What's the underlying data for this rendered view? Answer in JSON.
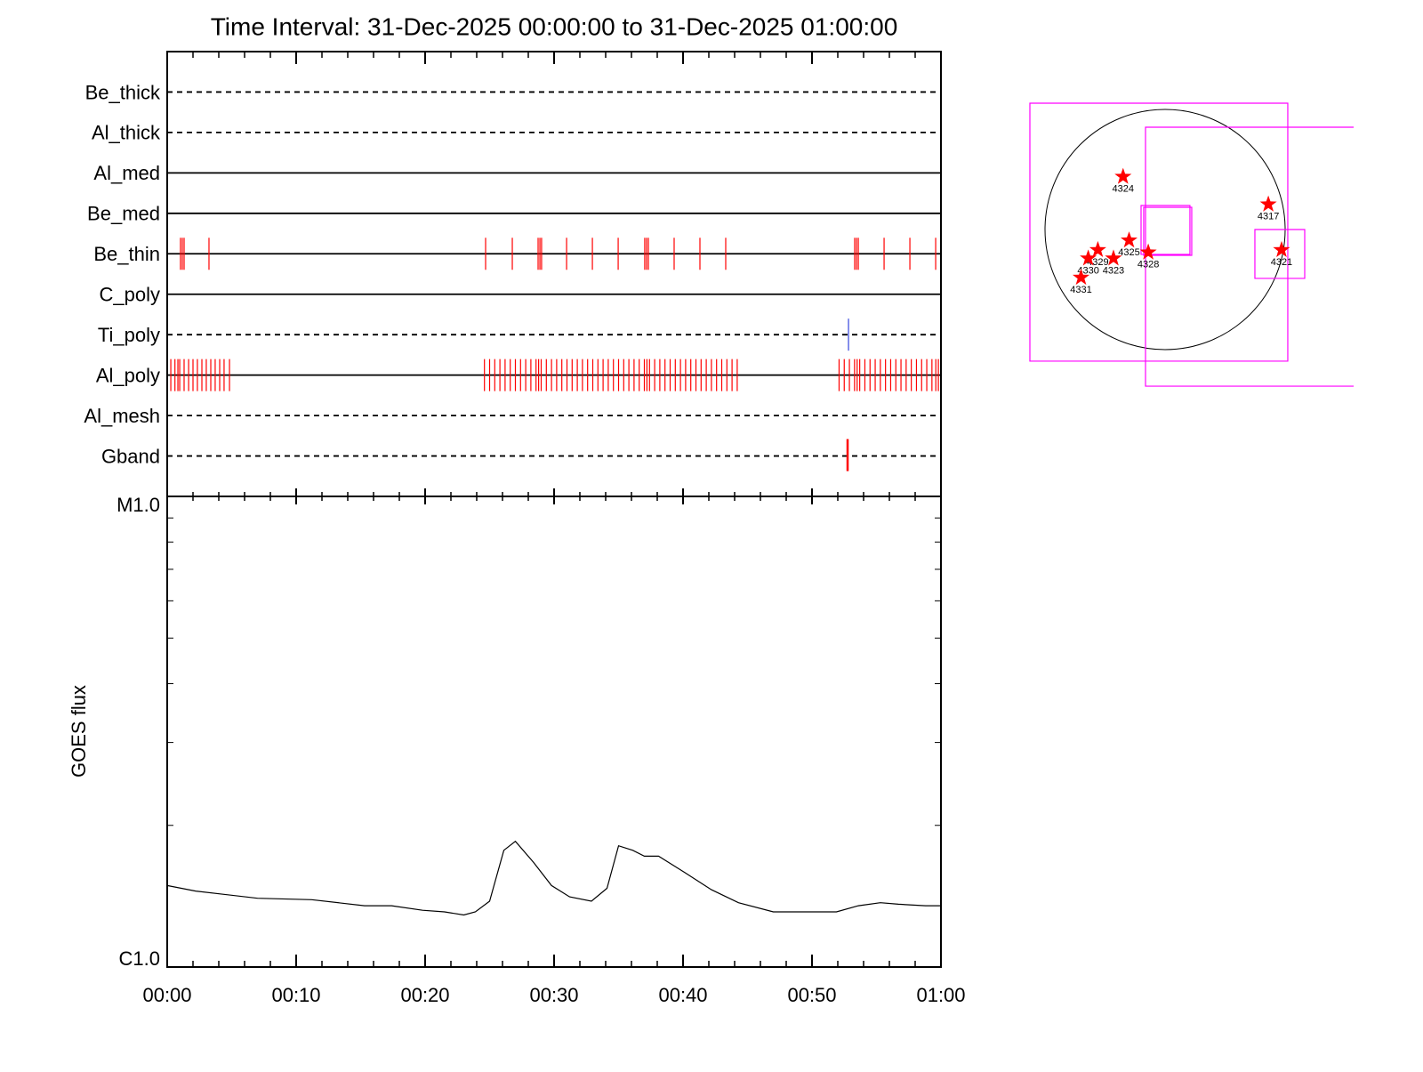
{
  "chart_data": [
    {
      "type": "timeline",
      "title": "Time Interval: 31-Dec-2025 00:00:00 to 31-Dec-2025 01:00:00",
      "categories": [
        "Be_thick",
        "Al_thick",
        "Al_med",
        "Be_med",
        "Be_thin",
        "C_poly",
        "Ti_poly",
        "Al_poly",
        "Al_mesh",
        "Gband"
      ],
      "line_styles": [
        "dashed",
        "dashed",
        "solid",
        "solid",
        "solid",
        "solid",
        "dashed",
        "solid",
        "dashed",
        "dashed"
      ],
      "event_colors": [
        "#ff0000",
        "#ff0000",
        "#ff0000",
        "#ff0000",
        "#ff0000",
        "#ff0000",
        "#3344dd",
        "#ff0000",
        "#ff0000",
        "#ff0000"
      ],
      "events": [
        [],
        [],
        [],
        [],
        [
          1.03,
          1.17,
          1.31,
          3.24,
          24.69,
          26.76,
          28.76,
          28.9,
          29.03,
          30.97,
          32.97,
          34.97,
          37.03,
          37.17,
          37.31,
          39.31,
          41.31,
          43.31,
          53.31,
          53.45,
          53.59,
          55.59,
          57.59,
          59.59
        ],
        [],
        [
          52.83
        ],
        [
          0.28,
          0.6,
          0.83,
          0.97,
          1.31,
          1.66,
          2.0,
          2.34,
          2.69,
          3.03,
          3.38,
          3.72,
          4.07,
          4.41,
          4.83,
          24.6,
          25.0,
          25.4,
          25.8,
          26.2,
          26.6,
          27.0,
          27.4,
          27.8,
          28.2,
          28.6,
          28.8,
          29.0,
          29.4,
          29.8,
          30.2,
          30.6,
          31.0,
          31.4,
          31.8,
          32.2,
          32.6,
          33.0,
          33.4,
          33.8,
          34.2,
          34.6,
          35.0,
          35.4,
          35.8,
          36.2,
          36.6,
          37.0,
          37.2,
          37.4,
          37.8,
          38.2,
          38.6,
          39.0,
          39.4,
          39.8,
          40.2,
          40.6,
          41.0,
          41.4,
          41.8,
          42.2,
          42.6,
          43.0,
          43.4,
          43.8,
          44.2,
          52.1,
          52.5,
          52.9,
          53.3,
          53.5,
          53.7,
          54.1,
          54.5,
          54.9,
          55.3,
          55.7,
          56.1,
          56.5,
          56.9,
          57.3,
          57.7,
          58.1,
          58.5,
          58.9,
          59.3,
          59.6,
          59.8
        ],
        [],
        [
          52.76
        ]
      ]
    },
    {
      "type": "line",
      "ylabel": "GOES flux",
      "log_scale": true,
      "color": "#000000",
      "xlim": [
        0,
        60
      ],
      "xticks": [
        {
          "value": 0,
          "label": "00:00"
        },
        {
          "value": 10,
          "label": "00:10"
        },
        {
          "value": 20,
          "label": "00:20"
        },
        {
          "value": 30,
          "label": "00:30"
        },
        {
          "value": 40,
          "label": "00:40"
        },
        {
          "value": 50,
          "label": "00:50"
        },
        {
          "value": 60,
          "label": "01:00"
        }
      ],
      "ylim": [
        1e-06,
        1e-05
      ],
      "yticks": [
        {
          "value": 1e-06,
          "label": "C1.0"
        },
        {
          "value": 1e-05,
          "label": "M1.0"
        }
      ],
      "x": [
        0,
        2.2,
        7,
        11.2,
        15.3,
        17.4,
        19.8,
        21.5,
        23,
        23.9,
        25,
        26.1,
        27,
        28.4,
        29.8,
        31.2,
        32.9,
        34.1,
        35,
        36.1,
        37,
        38.1,
        40.1,
        42.2,
        44.3,
        47,
        49.1,
        51.9,
        53.6,
        55.3,
        56.7,
        58.8,
        60
      ],
      "values": [
        1.49e-06,
        1.45e-06,
        1.4e-06,
        1.39e-06,
        1.35e-06,
        1.35e-06,
        1.32e-06,
        1.31e-06,
        1.29e-06,
        1.31e-06,
        1.38e-06,
        1.77e-06,
        1.85e-06,
        1.67e-06,
        1.49e-06,
        1.41e-06,
        1.38e-06,
        1.47e-06,
        1.81e-06,
        1.77e-06,
        1.72e-06,
        1.72e-06,
        1.59e-06,
        1.46e-06,
        1.37e-06,
        1.31e-06,
        1.31e-06,
        1.31e-06,
        1.35e-06,
        1.37e-06,
        1.36e-06,
        1.35e-06,
        1.35e-06
      ]
    },
    {
      "type": "map",
      "color": "#ff0000",
      "box_color": "#ff00ff",
      "labels": [
        "4324",
        "4317",
        "4325",
        "4328",
        "4321",
        "4329",
        "4323",
        "4330",
        "4331"
      ],
      "x": [
        -0.35,
        0.86,
        -0.3,
        -0.14,
        0.97,
        -0.56,
        -0.43,
        -0.64,
        -0.7
      ],
      "y": [
        0.44,
        0.21,
        -0.09,
        -0.19,
        -0.17,
        -0.17,
        -0.24,
        -0.24,
        -0.4
      ],
      "boxes": [
        [
          -1.126,
          1.052,
          1.022,
          -1.096
        ],
        [
          -0.163,
          0.852,
          1.6,
          -1.304
        ],
        [
          -0.2,
          0.2,
          0.207,
          -0.207
        ],
        [
          -0.178,
          0.185,
          0.222,
          -0.215
        ],
        [
          0.748,
          0.0,
          1.163,
          -0.407
        ]
      ]
    }
  ]
}
